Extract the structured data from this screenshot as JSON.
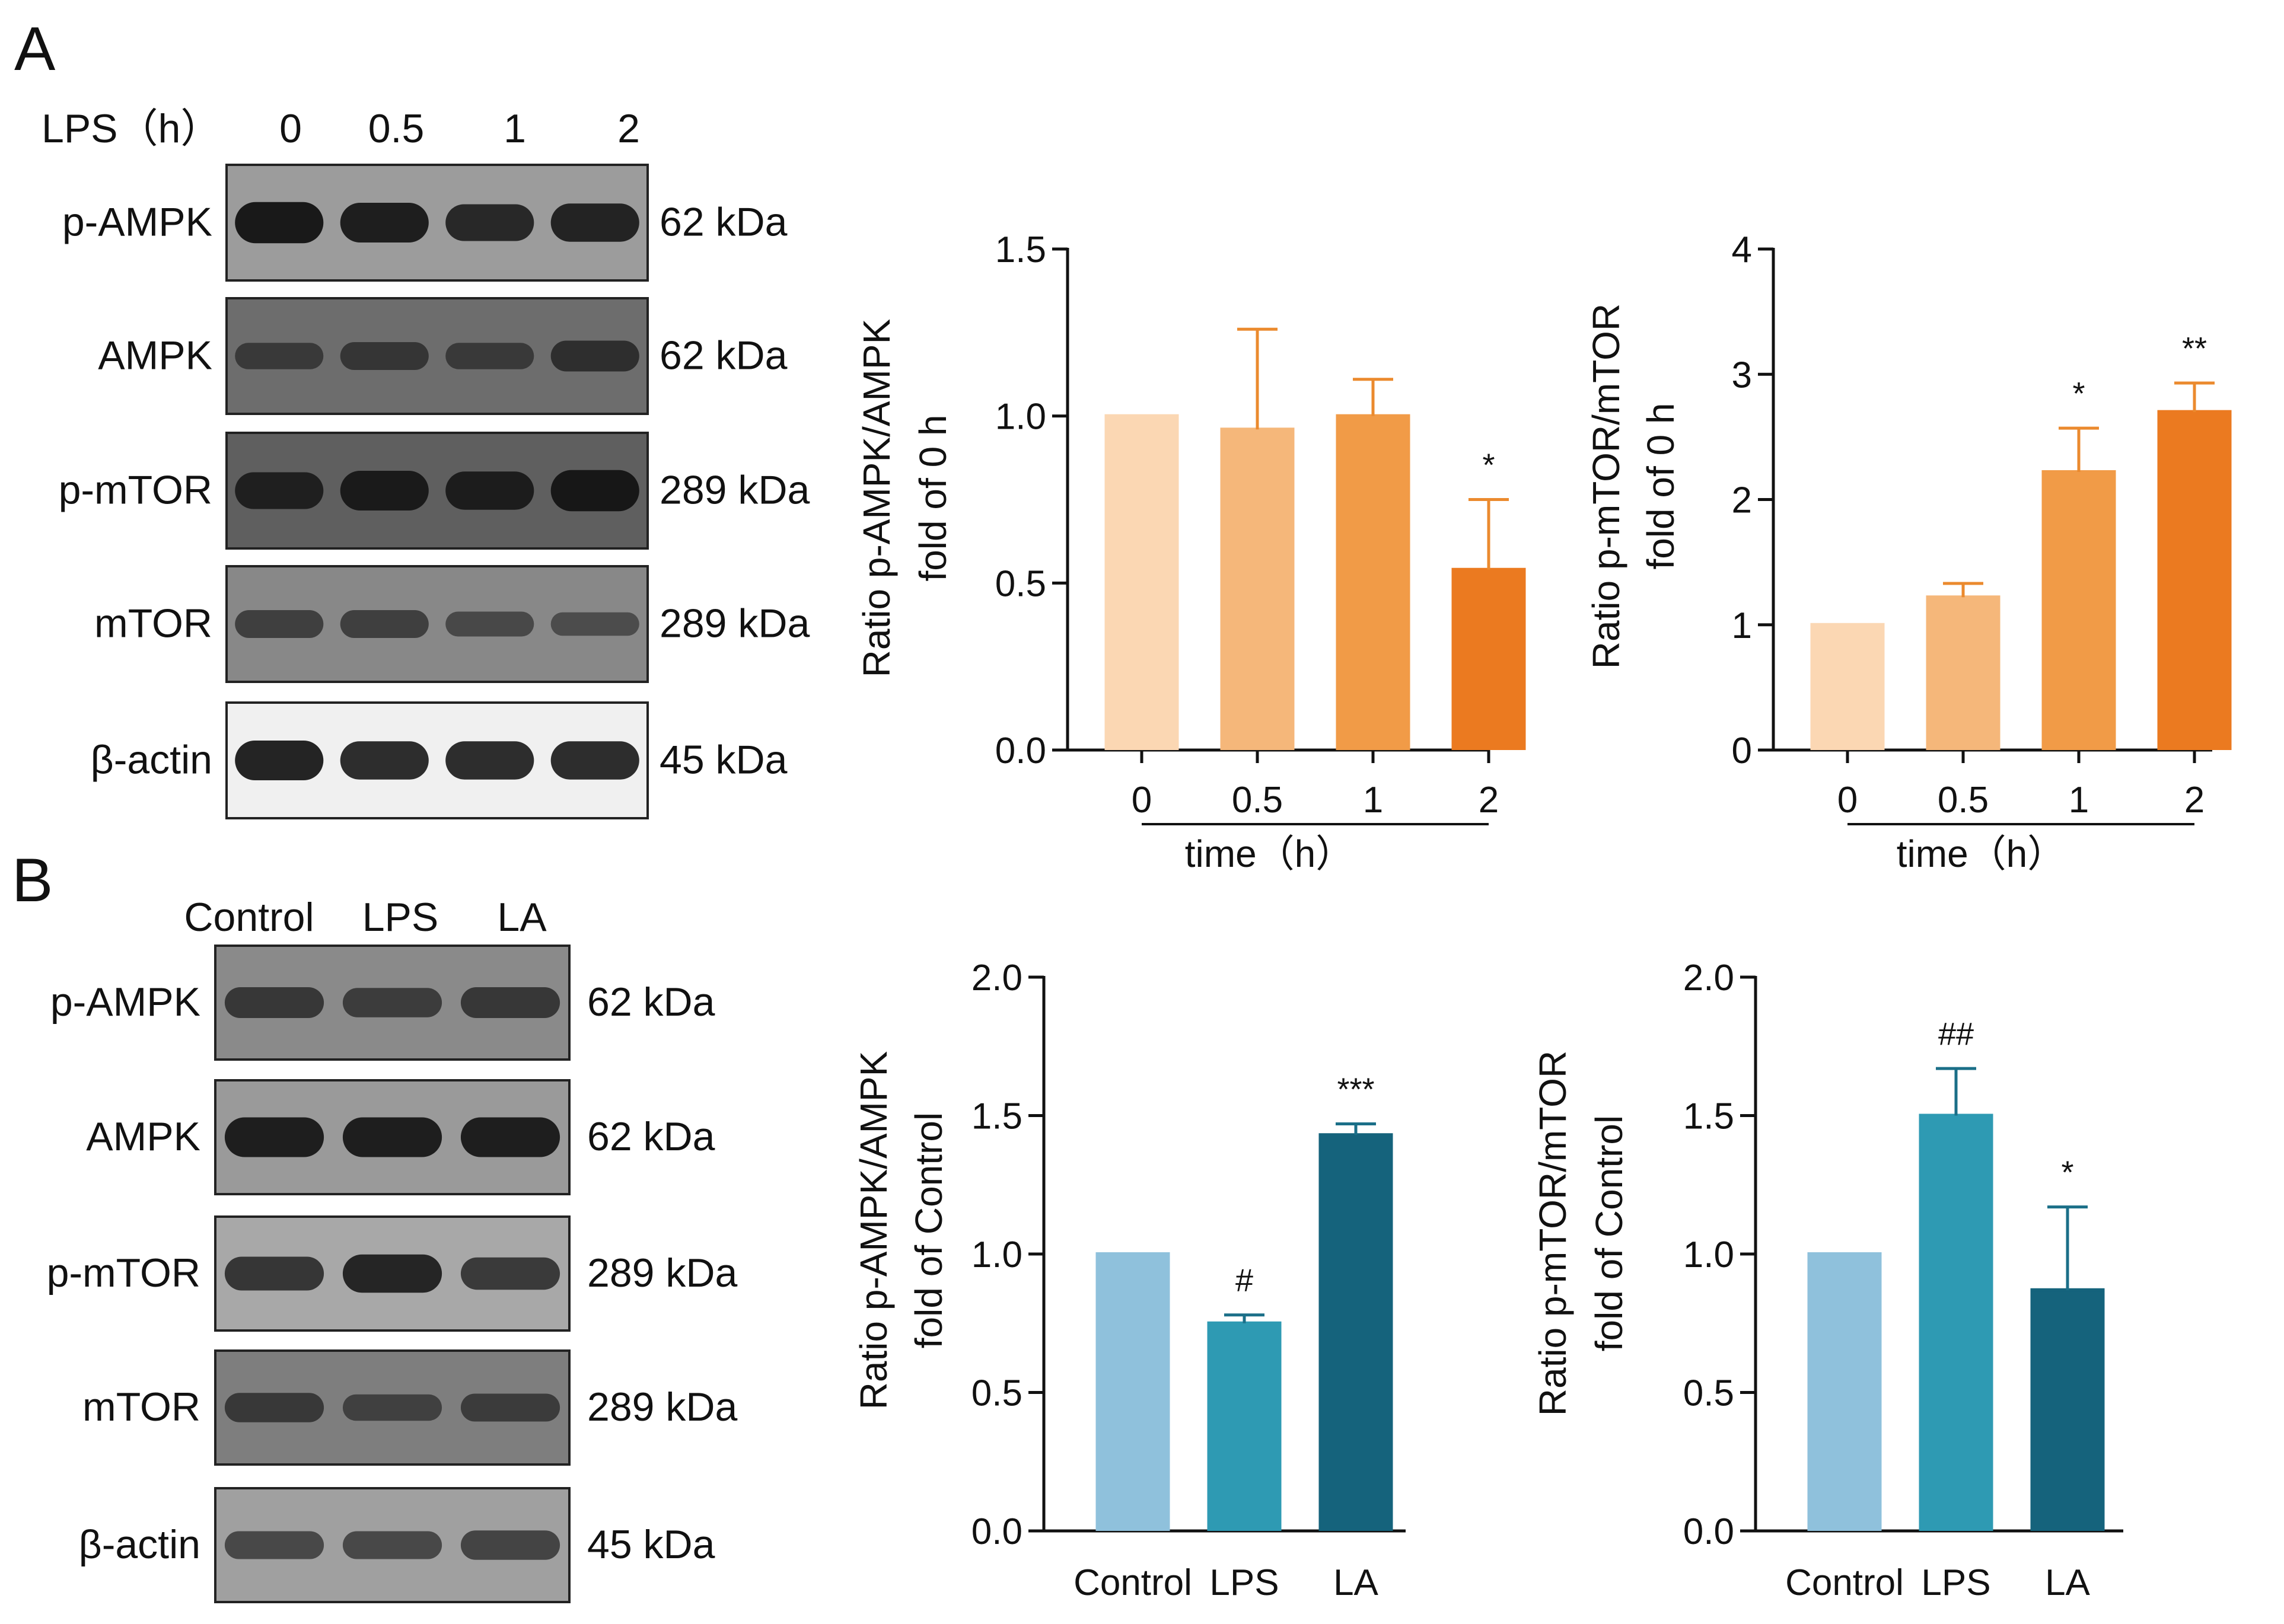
{
  "panels": [
    {
      "id": "A",
      "letter": "A",
      "blot_header": {
        "condition": "LPS（h）",
        "lanes": [
          "0",
          "0.5",
          "1",
          "2"
        ]
      },
      "blots": [
        {
          "name": "p-AMPK",
          "kda": "62 kDa",
          "bg": "#9c9c9c",
          "bands": [
            0.95,
            0.9,
            0.8,
            0.85
          ]
        },
        {
          "name": "AMPK",
          "kda": "62 kDa",
          "bg": "#6d6d6d",
          "bands": [
            0.45,
            0.5,
            0.45,
            0.6
          ]
        },
        {
          "name": "p-mTOR",
          "kda": "289 kDa",
          "bg": "#5f5f5f",
          "bands": [
            0.8,
            0.9,
            0.85,
            0.95
          ]
        },
        {
          "name": "mTOR",
          "kda": "289 kDa",
          "bg": "#888888",
          "bands": [
            0.5,
            0.5,
            0.4,
            0.35
          ]
        },
        {
          "name": "β-actin",
          "kda": "45 kDa",
          "bg": "#f0f0f0",
          "bands": [
            0.9,
            0.85,
            0.85,
            0.85
          ]
        }
      ]
    },
    {
      "id": "B",
      "letter": "B",
      "blot_header": {
        "condition": "",
        "lanes": [
          "Control",
          "LPS",
          "LA"
        ]
      },
      "blots": [
        {
          "name": "p-AMPK",
          "kda": "62 kDa",
          "bg": "#8a8a8a",
          "bands": [
            0.6,
            0.55,
            0.6
          ]
        },
        {
          "name": "AMPK",
          "kda": "62 kDa",
          "bg": "#9a9a9a",
          "bands": [
            0.9,
            0.9,
            0.9
          ]
        },
        {
          "name": "p-mTOR",
          "kda": "289 kDa",
          "bg": "#a8a8a8",
          "bands": [
            0.7,
            0.85,
            0.65
          ]
        },
        {
          "name": "mTOR",
          "kda": "289 kDa",
          "bg": "#7e7e7e",
          "bands": [
            0.55,
            0.45,
            0.5
          ]
        },
        {
          "name": "β-actin",
          "kda": "45 kDa",
          "bg": "#a0a0a0",
          "bands": [
            0.5,
            0.5,
            0.55
          ]
        }
      ]
    }
  ],
  "chart_data": [
    {
      "type": "bar",
      "panel": "A",
      "ylabel_line1": "Ratio p-AMPK/AMPK",
      "ylabel_line2": "fold of 0 h",
      "xlabel": "time（h）",
      "categories": [
        "0",
        "0.5",
        "1",
        "2"
      ],
      "values": [
        1.0,
        0.96,
        1.0,
        0.54
      ],
      "errors": [
        0.0,
        0.3,
        0.11,
        0.21
      ],
      "significance": [
        "",
        "",
        "",
        "*"
      ],
      "ylim": [
        0,
        1.5
      ],
      "yticks": [
        "0.0",
        "0.5",
        "1.0",
        "1.5"
      ],
      "colors": [
        "#fbd7b3",
        "#f5b77a",
        "#f19b47",
        "#eb7a20"
      ],
      "error_color": "#eb8a2e"
    },
    {
      "type": "bar",
      "panel": "A",
      "ylabel_line1": "Ratio p-mTOR/mTOR",
      "ylabel_line2": "fold of 0 h",
      "xlabel": "time（h）",
      "categories": [
        "0",
        "0.5",
        "1",
        "2"
      ],
      "values": [
        1.0,
        1.22,
        2.22,
        2.7
      ],
      "errors": [
        0.0,
        0.11,
        0.35,
        0.23
      ],
      "significance": [
        "",
        "",
        "*",
        "**"
      ],
      "ylim": [
        0,
        4
      ],
      "yticks": [
        "0",
        "1",
        "2",
        "3",
        "4"
      ],
      "colors": [
        "#fbd7b3",
        "#f5b77a",
        "#f19b47",
        "#eb7a20"
      ],
      "error_color": "#eb8a2e"
    },
    {
      "type": "bar",
      "panel": "B",
      "ylabel_line1": "Ratio p-AMPK/AMPK",
      "ylabel_line2": "fold of Control",
      "xlabel": "",
      "categories": [
        "Control",
        "LPS",
        "LA"
      ],
      "values": [
        1.0,
        0.75,
        1.43
      ],
      "errors": [
        0.0,
        0.03,
        0.04
      ],
      "significance": [
        "",
        "#",
        "***"
      ],
      "ylim": [
        0,
        2.0
      ],
      "yticks": [
        "0.0",
        "0.5",
        "1.0",
        "1.5",
        "2.0"
      ],
      "colors": [
        "#8fc1dc",
        "#2e9ab3",
        "#15637c"
      ],
      "error_color": "#1b6f88"
    },
    {
      "type": "bar",
      "panel": "B",
      "ylabel_line1": "Ratio p-mTOR/mTOR",
      "ylabel_line2": "fold of Control",
      "xlabel": "",
      "categories": [
        "Control",
        "LPS",
        "LA"
      ],
      "values": [
        1.0,
        1.5,
        0.87
      ],
      "errors": [
        0.0,
        0.17,
        0.3
      ],
      "significance": [
        "",
        "##",
        "*"
      ],
      "ylim": [
        0,
        2.0
      ],
      "yticks": [
        "0.0",
        "0.5",
        "1.0",
        "1.5",
        "2.0"
      ],
      "colors": [
        "#8fc1dc",
        "#2e9ab3",
        "#15637c"
      ],
      "error_color": "#1b6f88"
    }
  ]
}
